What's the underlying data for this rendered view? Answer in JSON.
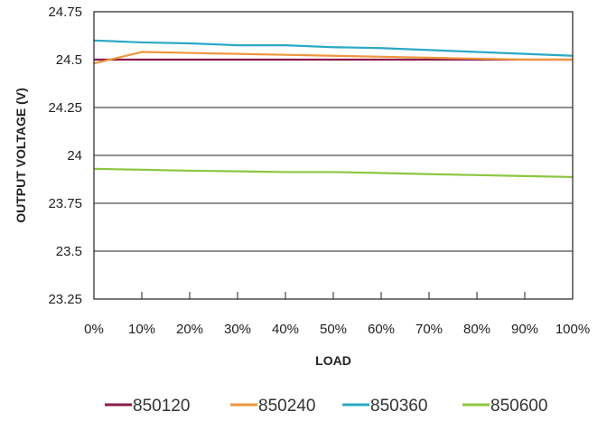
{
  "chart_data": {
    "type": "line",
    "title": "",
    "xlabel": "LOAD",
    "ylabel": "OUTPUT VOLTAGE (V)",
    "categories": [
      "0%",
      "10%",
      "20%",
      "30%",
      "40%",
      "50%",
      "60%",
      "70%",
      "80%",
      "90%",
      "100%"
    ],
    "ylim": [
      23.25,
      24.75
    ],
    "yticks": [
      "24.75",
      "24.5",
      "24.25",
      "24",
      "23.75",
      "23.5",
      "23.25"
    ],
    "grid": "horizontal",
    "legend_position": "bottom",
    "series": [
      {
        "name": "850120",
        "color": "#8b1a4a",
        "values": [
          24.5,
          24.5,
          24.5,
          24.5,
          24.5,
          24.5,
          24.5,
          24.5,
          24.5,
          24.5,
          24.5
        ]
      },
      {
        "name": "850240",
        "color": "#f0963c",
        "values": [
          24.48,
          24.54,
          24.535,
          24.53,
          24.525,
          24.52,
          24.515,
          24.51,
          24.505,
          24.5,
          24.5
        ]
      },
      {
        "name": "850360",
        "color": "#2aa9c4",
        "values": [
          24.6,
          24.59,
          24.585,
          24.575,
          24.575,
          24.565,
          24.56,
          24.55,
          24.54,
          24.53,
          24.52
        ]
      },
      {
        "name": "850600",
        "color": "#8cc63f",
        "values": [
          23.93,
          23.925,
          23.92,
          23.917,
          23.913,
          23.913,
          23.908,
          23.902,
          23.897,
          23.892,
          23.887
        ]
      }
    ]
  }
}
